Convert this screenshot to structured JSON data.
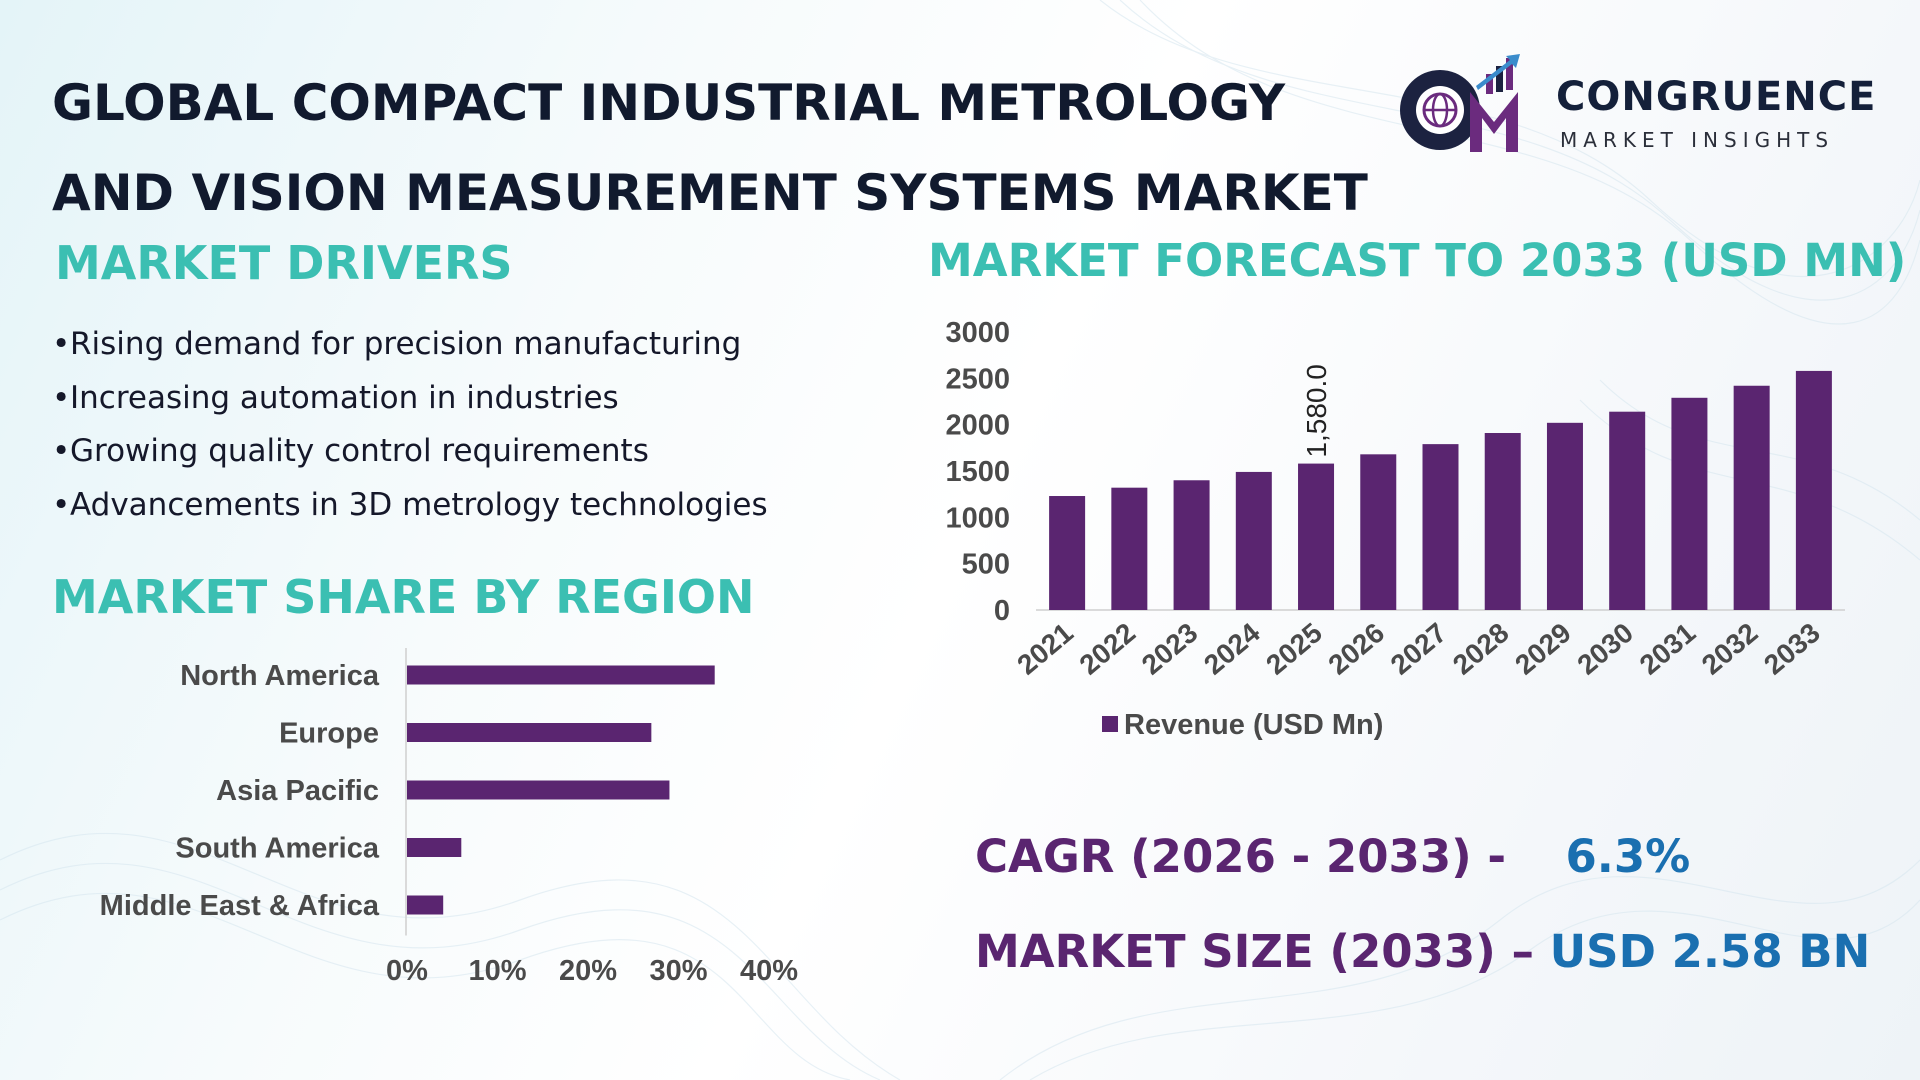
{
  "title": {
    "line1": "GLOBAL COMPACT INDUSTRIAL METROLOGY",
    "line2": "AND VISION MEASUREMENT SYSTEMS MARKET"
  },
  "logo": {
    "name": "CONGRUENCE",
    "tagline": "MARKET INSIGHTS",
    "icon": "cm-globe-bars-logo"
  },
  "drivers": {
    "heading": "MARKET DRIVERS",
    "items": [
      "Rising demand for precision manufacturing",
      "Increasing automation in industries",
      "Growing quality control requirements",
      "Advancements in 3D metrology technologies"
    ]
  },
  "region_heading": "MARKET SHARE BY REGION",
  "forecast_heading": "MARKET FORECAST TO 2033 (USD MN)",
  "cagr": {
    "label": "CAGR (2026 - 2033) -",
    "value": "6.3%"
  },
  "market_size": {
    "label": "MARKET SIZE (2033) –",
    "value": "USD 2.58 BN"
  },
  "colors": {
    "bar": "#5a2570",
    "teal_heading": "#3bbfb2",
    "purple_text": "#5a2570",
    "blue_value": "#1a6fb0",
    "title": "#111a2e"
  },
  "chart_data": [
    {
      "type": "bar",
      "orientation": "horizontal",
      "categories": [
        "North America",
        "Europe",
        "Asia Pacific",
        "South America",
        "Middle East & Africa"
      ],
      "values": [
        34,
        27,
        29,
        6,
        4
      ],
      "xlim": [
        0,
        40
      ],
      "xticks": [
        "0%",
        "10%",
        "20%",
        "30%",
        "40%"
      ],
      "grid": false
    },
    {
      "type": "bar",
      "categories": [
        "2021",
        "2022",
        "2023",
        "2024",
        "2025",
        "2026",
        "2027",
        "2028",
        "2029",
        "2030",
        "2031",
        "2032",
        "2033"
      ],
      "series": [
        {
          "name": "Revenue (USD Mn)",
          "values": [
            1230,
            1320,
            1400,
            1490,
            1580,
            1680,
            1790,
            1910,
            2020,
            2140,
            2290,
            2420,
            2580
          ]
        }
      ],
      "data_labels": [
        {
          "index": 4,
          "text": "1,580.0"
        }
      ],
      "ylim": [
        0,
        3000
      ],
      "yticks": [
        "0",
        "500",
        "1000",
        "1500",
        "2000",
        "2500",
        "3000"
      ],
      "legend": "bottom",
      "grid": false
    }
  ]
}
